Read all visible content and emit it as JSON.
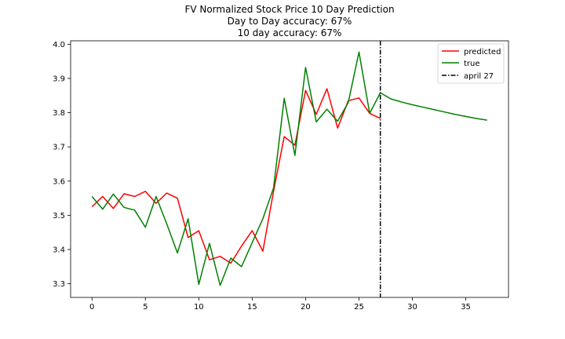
{
  "chart_data": {
    "type": "line",
    "title": [
      "FV Normalized Stock Price 10 Day Prediction",
      "Day to Day accuracy: 67%",
      "10 day accuracy: 67%"
    ],
    "xlabel": "",
    "ylabel": "",
    "xlim": [
      -2,
      39
    ],
    "ylim": [
      3.26,
      4.01
    ],
    "xticks": [
      0,
      5,
      10,
      15,
      20,
      25,
      30,
      35
    ],
    "yticks": [
      3.3,
      3.4,
      3.5,
      3.6,
      3.7,
      3.8,
      3.9,
      4.0
    ],
    "xtick_labels": [
      "0",
      "5",
      "10",
      "15",
      "20",
      "25",
      "30",
      "35"
    ],
    "ytick_labels": [
      "3.3",
      "3.4",
      "3.5",
      "3.6",
      "3.7",
      "3.8",
      "3.9",
      "4.0"
    ],
    "grid": false,
    "legend_position": "top-right",
    "series": [
      {
        "name": "predicted",
        "color": "#ff0000",
        "x": [
          0,
          1,
          2,
          3,
          4,
          5,
          6,
          7,
          8,
          9,
          10,
          11,
          12,
          13,
          14,
          15,
          16,
          17,
          18,
          19,
          20,
          21,
          22,
          23,
          24,
          25,
          26,
          27
        ],
        "y": [
          3.525,
          3.555,
          3.52,
          3.563,
          3.555,
          3.57,
          3.535,
          3.565,
          3.55,
          3.435,
          3.455,
          3.37,
          3.38,
          3.36,
          3.41,
          3.455,
          3.395,
          3.57,
          3.73,
          3.705,
          3.865,
          3.795,
          3.87,
          3.755,
          3.835,
          3.843,
          3.798,
          3.783
        ]
      },
      {
        "name": "true",
        "color": "#008000",
        "x": [
          0,
          1,
          2,
          3,
          4,
          5,
          6,
          7,
          8,
          9,
          10,
          11,
          12,
          13,
          14,
          15,
          16,
          17,
          18,
          19,
          20,
          21,
          22,
          23,
          24,
          25,
          26,
          27,
          28,
          29,
          30,
          31,
          32,
          33,
          34,
          35,
          36,
          37
        ],
        "y": [
          3.555,
          3.518,
          3.562,
          3.523,
          3.515,
          3.465,
          3.555,
          3.475,
          3.39,
          3.49,
          3.298,
          3.418,
          3.295,
          3.375,
          3.35,
          3.42,
          3.49,
          3.58,
          3.842,
          3.675,
          3.932,
          3.773,
          3.81,
          3.775,
          3.83,
          3.977,
          3.798,
          3.858,
          3.84,
          3.831,
          3.823,
          3.816,
          3.809,
          3.802,
          3.795,
          3.789,
          3.783,
          3.778
        ]
      }
    ],
    "vline": {
      "name": "april 27",
      "x": 27,
      "color": "#000000",
      "style": "dash-dot"
    }
  }
}
